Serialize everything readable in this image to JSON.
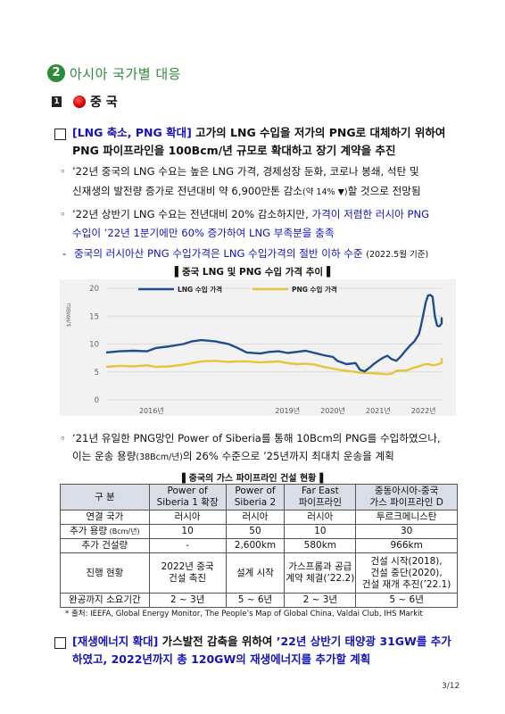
{
  "section": {
    "number": "2",
    "title": "아시아 국가별 대응"
  },
  "subsection": {
    "number": "1",
    "flag_icon": "china-flag-icon",
    "country": "중 국"
  },
  "item1": {
    "bracket": "[LNG 축소, PNG 확대]",
    "line1_rest": " 고가의 LNG 수입을 저가의 PNG로 대체하기 위하여",
    "line2": "PNG 파이프라인을 100Bcm/년 규모로 확대하고 장기 계약을 추진"
  },
  "bullet1": {
    "line1": "’22년 중국의 LNG 수요는 높은 LNG 가격, 경제성장 둔화, 코로나 봉쇄, 석탄 및",
    "line2a": "신재생의 발전량 증가로 전년대비 약 6,900만톤 감소",
    "line2b": "(약 14% ▼)",
    "line2c": "할 것으로 전망됨"
  },
  "bullet2": {
    "line1a": "’22년 상반기 LNG 수요는 전년대비 20% 감소하지만, ",
    "line1b": "가격이 저렴한 러시아 PNG",
    "line2": "수입이 ’22년 1분기에만 60% 증가하여 LNG 부족분을 충족"
  },
  "dash1": {
    "dash": "-",
    "text": "중국의 러시아산 PNG 수입가격은 LNG 수입가격의 절반 이하 수준",
    "note": "(2022.5월 기준)"
  },
  "chart_title": "▌중국 LNG 및 PNG 수입 가격 추이▐",
  "chart_data": {
    "type": "line",
    "title": "중국 LNG 및 PNG 수입 가격 추이",
    "ylabel": "$/MMBtu",
    "ylim": [
      0,
      20
    ],
    "yticks": [
      "0",
      "5",
      "10",
      "15",
      "20"
    ],
    "xticks": [
      "2016년",
      "2019년",
      "2020년",
      "2021년",
      "2022년"
    ],
    "xtick_positions": [
      2016,
      2019,
      2020,
      2021,
      2022
    ],
    "xlim": [
      2015.0,
      2022.4
    ],
    "grid": true,
    "legend": "top",
    "series": [
      {
        "name": "LNG 수입 가격",
        "color": "#1f4e8c",
        "points": [
          [
            2015.0,
            8.5
          ],
          [
            2015.3,
            8.7
          ],
          [
            2015.6,
            8.8
          ],
          [
            2015.9,
            8.7
          ],
          [
            2016.1,
            9.3
          ],
          [
            2016.4,
            9.6
          ],
          [
            2016.7,
            10.0
          ],
          [
            2016.9,
            10.5
          ],
          [
            2017.1,
            10.7
          ],
          [
            2017.4,
            10.5
          ],
          [
            2017.7,
            10.0
          ],
          [
            2017.9,
            9.3
          ],
          [
            2018.1,
            8.5
          ],
          [
            2018.4,
            8.3
          ],
          [
            2018.6,
            8.6
          ],
          [
            2018.8,
            8.7
          ],
          [
            2019.0,
            8.4
          ],
          [
            2019.2,
            8.6
          ],
          [
            2019.4,
            8.8
          ],
          [
            2019.6,
            8.4
          ],
          [
            2019.8,
            8.0
          ],
          [
            2020.0,
            7.7
          ],
          [
            2020.1,
            7.0
          ],
          [
            2020.3,
            6.4
          ],
          [
            2020.5,
            6.6
          ],
          [
            2020.6,
            5.4
          ],
          [
            2020.7,
            5.1
          ],
          [
            2020.8,
            5.7
          ],
          [
            2020.9,
            6.4
          ],
          [
            2021.0,
            7.0
          ],
          [
            2021.1,
            7.5
          ],
          [
            2021.2,
            7.9
          ],
          [
            2021.3,
            7.3
          ],
          [
            2021.4,
            7.0
          ],
          [
            2021.5,
            7.8
          ],
          [
            2021.6,
            8.8
          ],
          [
            2021.7,
            9.7
          ],
          [
            2021.8,
            10.5
          ],
          [
            2021.9,
            11.8
          ],
          [
            2021.95,
            13.5
          ],
          [
            2022.0,
            15.5
          ],
          [
            2022.05,
            17.5
          ],
          [
            2022.1,
            18.7
          ],
          [
            2022.15,
            18.8
          ],
          [
            2022.2,
            18.5
          ],
          [
            2022.25,
            15.0
          ],
          [
            2022.3,
            13.3
          ],
          [
            2022.35,
            13.2
          ],
          [
            2022.4,
            13.7
          ],
          [
            2022.45,
            14.5
          ],
          [
            2022.5,
            14.8
          ]
        ]
      },
      {
        "name": "PNG 수입 가격",
        "color": "#e8c43a",
        "points": [
          [
            2015.0,
            5.9
          ],
          [
            2015.3,
            6.1
          ],
          [
            2015.6,
            6.0
          ],
          [
            2015.9,
            6.2
          ],
          [
            2016.1,
            5.9
          ],
          [
            2016.4,
            6.0
          ],
          [
            2016.7,
            6.3
          ],
          [
            2016.9,
            6.6
          ],
          [
            2017.1,
            6.9
          ],
          [
            2017.4,
            7.0
          ],
          [
            2017.7,
            6.8
          ],
          [
            2017.9,
            6.9
          ],
          [
            2018.1,
            6.9
          ],
          [
            2018.4,
            6.7
          ],
          [
            2018.6,
            6.8
          ],
          [
            2018.8,
            6.9
          ],
          [
            2019.0,
            6.6
          ],
          [
            2019.2,
            6.4
          ],
          [
            2019.4,
            6.5
          ],
          [
            2019.6,
            6.3
          ],
          [
            2019.8,
            5.9
          ],
          [
            2020.0,
            5.6
          ],
          [
            2020.2,
            5.3
          ],
          [
            2020.4,
            5.1
          ],
          [
            2020.6,
            4.9
          ],
          [
            2020.8,
            4.8
          ],
          [
            2021.0,
            4.7
          ],
          [
            2021.2,
            4.6
          ],
          [
            2021.3,
            4.7
          ],
          [
            2021.4,
            5.2
          ],
          [
            2021.5,
            5.3
          ],
          [
            2021.6,
            5.2
          ],
          [
            2021.7,
            5.5
          ],
          [
            2021.8,
            5.8
          ],
          [
            2021.9,
            6.0
          ],
          [
            2022.0,
            6.3
          ],
          [
            2022.1,
            6.4
          ],
          [
            2022.2,
            6.2
          ],
          [
            2022.3,
            6.3
          ],
          [
            2022.4,
            6.6
          ],
          [
            2022.5,
            7.5
          ]
        ]
      }
    ]
  },
  "bullet3": {
    "line1": "’21년 유일한 PNG망인 Power of Siberia를 통해 10Bcm의 PNG를 수입하였으나,",
    "line2a": "이는 운송 용량",
    "line2b": "(38Bcm/년)",
    "line2c": "의 26% 수준으로 ’25년까지 최대치 운송을 계획"
  },
  "table_title": "▌중국의 가스 파이프라인 건설 현황▐",
  "table": {
    "headers": [
      [
        "구 분"
      ],
      [
        "Power of",
        "Siberia 1 확장"
      ],
      [
        "Power of",
        "Siberia 2"
      ],
      [
        "Far East",
        "파이프라인"
      ],
      [
        "중동아시아-중국",
        "가스 파이프라인 D"
      ]
    ],
    "rows": [
      {
        "label": "연결 국가",
        "cells": [
          [
            "러시아"
          ],
          [
            "러시아"
          ],
          [
            "러시아"
          ],
          [
            "투르크메니스탄"
          ]
        ]
      },
      {
        "label": "추가 용량",
        "label_small": " (Bcm/년)",
        "cells": [
          [
            "10"
          ],
          [
            "50"
          ],
          [
            "10"
          ],
          [
            "30"
          ]
        ]
      },
      {
        "label": "추가 건설량",
        "cells": [
          [
            "-"
          ],
          [
            "2,600km"
          ],
          [
            "580km"
          ],
          [
            "966km"
          ]
        ]
      },
      {
        "label": "진행 현황",
        "cells": [
          [
            "2022년 중국",
            "건설 촉진"
          ],
          [
            "설계 시작"
          ],
          [
            "가스프롬과 공급",
            "계약 체결(’22.2)"
          ],
          [
            "건설 시작(2018),",
            "건설 중단(2020),",
            "건설 재개 추진(’22.1)"
          ]
        ]
      },
      {
        "label": "완공까지 소요기간",
        "cells": [
          [
            "2 ~ 3년"
          ],
          [
            "5 ~ 6년"
          ],
          [
            "2 ~ 3년"
          ],
          [
            "5 ~ 6년"
          ]
        ]
      }
    ]
  },
  "table_note": "* 출처: IEEFA, Global Energy Monitor, The People’s Map of Global China, Valdai Club, IHS Markit",
  "item2": {
    "bracket": "[재생에너지 확대]",
    "line1a": " 가스발전 감축을 위하여 ",
    "line1b": "’22년 상반기 태양광 31GW를 추가",
    "line2": "하였고, 2022년까지 총 120GW의 재생에너지를 추가할 계획"
  },
  "page_number": "3/12"
}
